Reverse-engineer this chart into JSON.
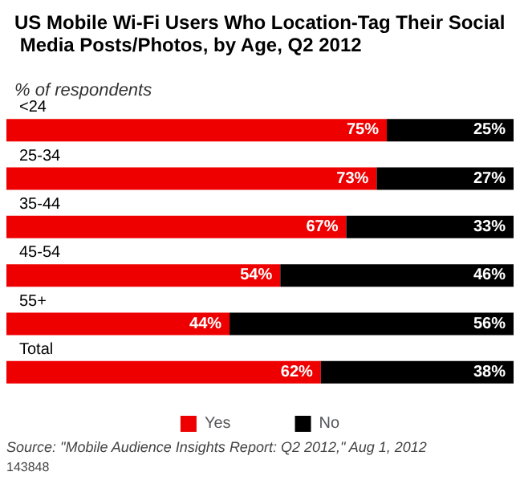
{
  "chart_data": {
    "type": "bar",
    "orientation": "horizontal",
    "stacked": true,
    "title": "US Mobile Wi-Fi Users Who Location-Tag Their Social Media Posts/Photos, by Age, Q2 2012",
    "subtitle": "% of respondents",
    "categories": [
      "<24",
      "25-34",
      "35-44",
      "45-54",
      "55+",
      "Total"
    ],
    "series": [
      {
        "name": "Yes",
        "color": "#ee0000",
        "values": [
          75,
          73,
          67,
          54,
          44,
          62
        ],
        "value_labels": [
          "75%",
          "73%",
          "67%",
          "54%",
          "44%",
          "62%"
        ]
      },
      {
        "name": "No",
        "color": "#000000",
        "values": [
          25,
          27,
          33,
          46,
          56,
          38
        ],
        "value_labels": [
          "25%",
          "27%",
          "33%",
          "46%",
          "56%",
          "38%"
        ]
      }
    ],
    "legend": "bottom",
    "annotations": [
      "Source: \"Mobile Audience Insights Report: Q2 2012,\" Aug 1, 2012",
      "143848"
    ]
  }
}
